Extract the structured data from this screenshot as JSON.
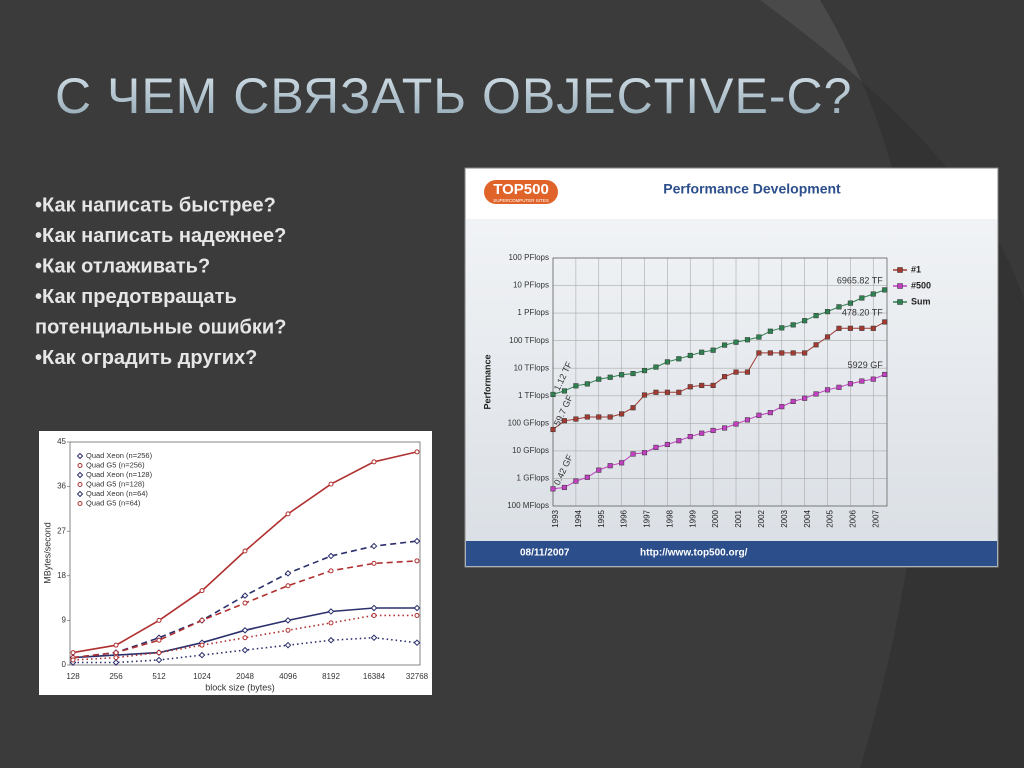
{
  "slide": {
    "title": "С ЧЕМ СВЯЗАТЬ OBJECTIVE-C?",
    "bullets": [
      "•Как написать быстрее?",
      "•Как написать надежнее?",
      "•Как отлаживать?",
      "•Как предотвращать",
      "потенциальные ошибки?",
      "•Как оградить других?"
    ]
  },
  "chart_data": [
    {
      "type": "line",
      "x_label": "block size (bytes)",
      "y_label": "MBytes/second",
      "categories": [
        "128",
        "256",
        "512",
        "1024",
        "2048",
        "4096",
        "8192",
        "16384",
        "32768"
      ],
      "ylim": [
        0,
        45
      ],
      "yticks": [
        0,
        9,
        18,
        27,
        36,
        45
      ],
      "series": [
        {
          "name": "Quad Xeon (n=256)",
          "color": "#2b2f6b",
          "dash": "solid",
          "marker": "diamond",
          "values": [
            1.5,
            2,
            2.5,
            4.5,
            7,
            9,
            10.8,
            11.5,
            11.5
          ]
        },
        {
          "name": "Quad G5 (n=256)",
          "color": "#b03030",
          "dash": "solid",
          "marker": "circle",
          "values": [
            2.5,
            4,
            9,
            15,
            23,
            30.5,
            36.5,
            41,
            43
          ]
        },
        {
          "name": "Quad Xeon (n=128)",
          "color": "#2b2f6b",
          "dash": "dashed",
          "marker": "diamond",
          "values": [
            1.5,
            2.5,
            5.5,
            9,
            14,
            18.5,
            22,
            24,
            25
          ]
        },
        {
          "name": "Quad G5 (n=128)",
          "color": "#b03030",
          "dash": "dashed",
          "marker": "circle",
          "values": [
            1.5,
            2.5,
            5,
            9,
            12.5,
            16,
            19,
            20.5,
            21
          ]
        },
        {
          "name": "Quad Xeon (n=64)",
          "color": "#2b2f6b",
          "dash": "dotted",
          "marker": "diamond",
          "values": [
            0.5,
            0.5,
            1,
            2,
            3,
            4,
            5,
            5.5,
            4.5
          ]
        },
        {
          "name": "Quad G5 (n=64)",
          "color": "#b03030",
          "dash": "dotted",
          "marker": "circle",
          "values": [
            1,
            1.5,
            2.5,
            4,
            5.5,
            7,
            8.5,
            10,
            10
          ]
        }
      ]
    },
    {
      "type": "line",
      "title": "Performance Development",
      "logo": "TOP500",
      "logo_sub": "SUPERCOMPUTER SITES",
      "footer_date": "08/11/2007",
      "footer_url": "http://www.top500.org/",
      "y_label": "Performance",
      "log_y": true,
      "grid": true,
      "legend": "right",
      "x": [
        1993,
        1993.5,
        1994,
        1994.5,
        1995,
        1995.5,
        1996,
        1996.5,
        1997,
        1997.5,
        1998,
        1998.5,
        1999,
        1999.5,
        2000,
        2000.5,
        2001,
        2001.5,
        2002,
        2002.5,
        2003,
        2003.5,
        2004,
        2004.5,
        2005,
        2005.5,
        2006,
        2006.5,
        2007,
        2007.5
      ],
      "xlim": [
        1993,
        2007.6
      ],
      "xticks": [
        1993,
        1994,
        1995,
        1996,
        1997,
        1998,
        1999,
        2000,
        2001,
        2002,
        2003,
        2004,
        2005,
        2006,
        2007
      ],
      "ylim": [
        0.1,
        100000000
      ],
      "yticks": [
        {
          "value": 0.1,
          "label": "100 MFlops"
        },
        {
          "value": 1,
          "label": "1 GFlops"
        },
        {
          "value": 10,
          "label": "10 GFlops"
        },
        {
          "value": 100,
          "label": "100 GFlops"
        },
        {
          "value": 1000,
          "label": "1 TFlops"
        },
        {
          "value": 10000,
          "label": "10 TFlops"
        },
        {
          "value": 100000,
          "label": "100 TFlops"
        },
        {
          "value": 1000000,
          "label": "1 PFlops"
        },
        {
          "value": 10000000,
          "label": "10 PFlops"
        },
        {
          "value": 100000000,
          "label": "100 PFlops"
        }
      ],
      "series": [
        {
          "name": "#1",
          "color": "#a33a32",
          "values": [
            59.7,
            124,
            143,
            170,
            170,
            170,
            220,
            368,
            1068,
            1338,
            1338,
            1338,
            2121,
            2379,
            2379,
            4938,
            7226,
            7226,
            35860,
            35860,
            35860,
            35860,
            35860,
            70720,
            136800,
            280600,
            280600,
            280600,
            280600,
            478200
          ],
          "value_labels": [
            "59.7 GF",
            null,
            null,
            null,
            null,
            null,
            null,
            null,
            null,
            null,
            null,
            null,
            null,
            null,
            null,
            null,
            null,
            null,
            null,
            null,
            null,
            null,
            null,
            null,
            null,
            null,
            null,
            null,
            null,
            "478.20 TF"
          ]
        },
        {
          "name": "#500",
          "color": "#c040c0",
          "values": [
            0.42,
            0.47,
            0.8,
            1.1,
            2.0,
            2.9,
            3.7,
            7.7,
            8.6,
            13.4,
            17.1,
            23.4,
            33.1,
            43.8,
            55.1,
            67.8,
            94.3,
            134,
            196,
            245,
            403,
            624,
            813,
            1166,
            1646,
            2026,
            2737,
            3410,
            4005,
            5929
          ],
          "value_labels": [
            "0.42 GF",
            null,
            null,
            null,
            null,
            null,
            null,
            null,
            null,
            null,
            null,
            null,
            null,
            null,
            null,
            null,
            null,
            null,
            null,
            null,
            null,
            null,
            null,
            null,
            null,
            null,
            null,
            null,
            null,
            "5929 GF"
          ]
        },
        {
          "name": "Sum",
          "color": "#2e8050",
          "values": [
            1120,
            1500,
            2300,
            2700,
            4000,
            4700,
            5800,
            6400,
            8200,
            11000,
            17000,
            22000,
            29000,
            38000,
            45000,
            69000,
            88000,
            108000,
            135000,
            220000,
            292000,
            375000,
            530000,
            810000,
            1130000,
            1690000,
            2300000,
            3540000,
            4920000,
            6965820
          ],
          "value_labels": [
            "1.12 TF",
            null,
            null,
            null,
            null,
            null,
            null,
            null,
            null,
            null,
            null,
            null,
            null,
            null,
            null,
            null,
            null,
            null,
            null,
            null,
            null,
            null,
            null,
            null,
            null,
            null,
            null,
            null,
            null,
            "6965.82 TF"
          ]
        }
      ]
    }
  ]
}
